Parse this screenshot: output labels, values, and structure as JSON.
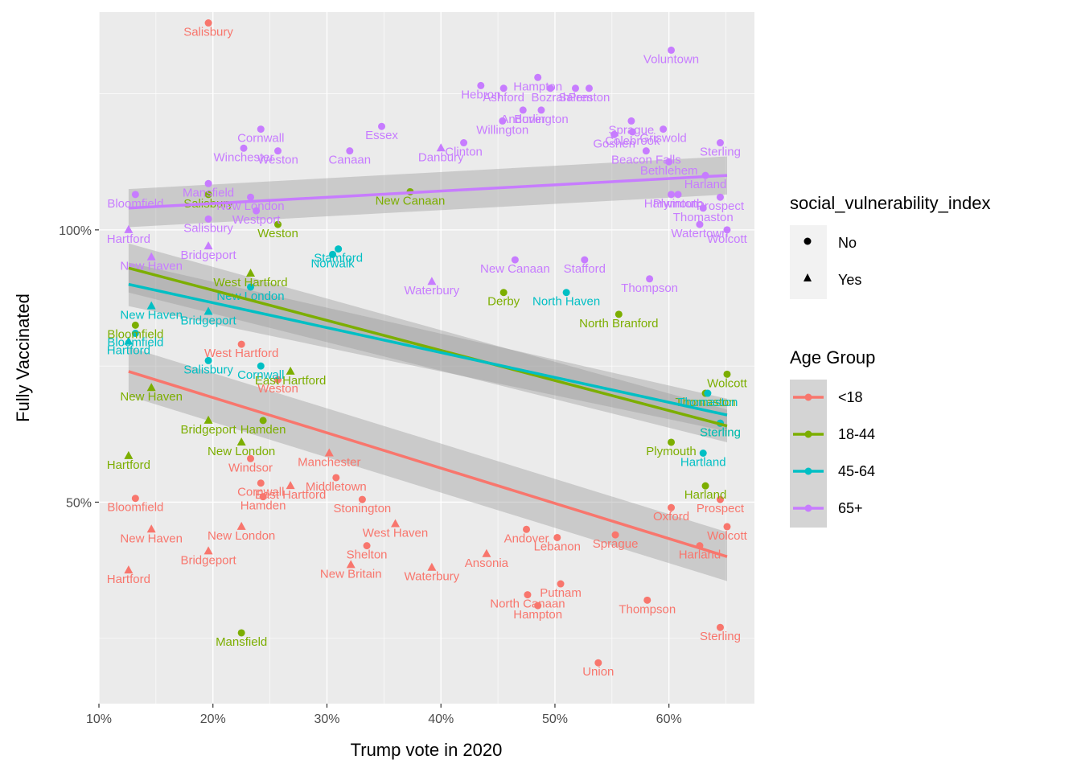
{
  "chart_data": {
    "type": "scatter",
    "title": "",
    "xlabel": "Trump vote in 2020",
    "ylabel": "Fully Vaccinated",
    "xlim": [
      10,
      67.5
    ],
    "ylim": [
      13,
      140
    ],
    "x_ticks": [
      10,
      20,
      30,
      40,
      50,
      60
    ],
    "x_tick_labels": [
      "10%",
      "20%",
      "30%",
      "40%",
      "50%",
      "60%"
    ],
    "y_ticks": [
      50,
      100
    ],
    "y_tick_labels": [
      "50%",
      "100%"
    ],
    "grid": true,
    "legend_position": "right",
    "colors": {
      "<18": "#F8766D",
      "18-44": "#7CAE00",
      "45-64": "#00BFC4",
      "65+": "#C77CFF",
      "panel": "#EBEBEB",
      "grid": "#FFFFFF",
      "ribbon": "#999999"
    },
    "shape_legend": {
      "title": "social_vulnerability_index",
      "items": [
        {
          "label": "No",
          "shape": "circle"
        },
        {
          "label": "Yes",
          "shape": "triangle"
        }
      ]
    },
    "color_legend": {
      "title": "Age Group",
      "items": [
        "<18",
        "18-44",
        "45-64",
        "65+"
      ]
    },
    "trend_lines": [
      {
        "name": "<18",
        "x": [
          12.6,
          65.1
        ],
        "y": [
          74,
          40
        ],
        "se_halfwidth": [
          4.5,
          4.5
        ]
      },
      {
        "name": "18-44",
        "x": [
          12.6,
          65.1
        ],
        "y": [
          93,
          64
        ],
        "se_halfwidth": [
          4.5,
          3
        ]
      },
      {
        "name": "45-64",
        "x": [
          12.6,
          65.1
        ],
        "y": [
          90,
          66
        ],
        "se_halfwidth": [
          4,
          3
        ]
      },
      {
        "name": "65+",
        "x": [
          12.6,
          65.1
        ],
        "y": [
          104,
          110
        ],
        "se_halfwidth": [
          3.5,
          3.5
        ]
      }
    ],
    "series": [
      {
        "name": "<18",
        "points": [
          {
            "label": "Salisbury",
            "x": 19.6,
            "y": 138,
            "shape": "circle"
          },
          {
            "label": "Bloomfield",
            "x": 13.2,
            "y": 50.7,
            "shape": "circle"
          },
          {
            "label": "New Haven",
            "x": 14.6,
            "y": 45,
            "shape": "triangle"
          },
          {
            "label": "Hartford",
            "x": 12.6,
            "y": 37.5,
            "shape": "triangle"
          },
          {
            "label": "Bridgeport",
            "x": 19.6,
            "y": 41,
            "shape": "triangle"
          },
          {
            "label": "New London",
            "x": 22.5,
            "y": 45.5,
            "shape": "triangle"
          },
          {
            "label": "Windsor",
            "x": 23.3,
            "y": 58,
            "shape": "circle"
          },
          {
            "label": "Cornwall",
            "x": 24.2,
            "y": 53.5,
            "shape": "circle"
          },
          {
            "label": "Hamden",
            "x": 24.4,
            "y": 51,
            "shape": "circle"
          },
          {
            "label": "East Hartford",
            "x": 26.8,
            "y": 53,
            "shape": "triangle"
          },
          {
            "label": "West Hartford",
            "x": 22.5,
            "y": 79,
            "shape": "circle"
          },
          {
            "label": "Weston",
            "x": 25.7,
            "y": 72.5,
            "shape": "circle"
          },
          {
            "label": "Manchester",
            "x": 30.2,
            "y": 59,
            "shape": "triangle"
          },
          {
            "label": "Middletown",
            "x": 30.8,
            "y": 54.5,
            "shape": "circle"
          },
          {
            "label": "Stonington",
            "x": 33.1,
            "y": 50.5,
            "shape": "circle"
          },
          {
            "label": "Shelton",
            "x": 33.5,
            "y": 42,
            "shape": "circle"
          },
          {
            "label": "West Haven",
            "x": 36.0,
            "y": 46,
            "shape": "triangle"
          },
          {
            "label": "New Britain",
            "x": 32.1,
            "y": 38.5,
            "shape": "triangle"
          },
          {
            "label": "Waterbury",
            "x": 39.2,
            "y": 38,
            "shape": "triangle"
          },
          {
            "label": "Ansonia",
            "x": 44.0,
            "y": 40.5,
            "shape": "triangle"
          },
          {
            "label": "North Canaan",
            "x": 47.6,
            "y": 33,
            "shape": "circle"
          },
          {
            "label": "Hampton",
            "x": 48.5,
            "y": 31,
            "shape": "circle"
          },
          {
            "label": "Putnam",
            "x": 50.5,
            "y": 35,
            "shape": "circle"
          },
          {
            "label": "Lebanon",
            "x": 50.2,
            "y": 43.5,
            "shape": "circle"
          },
          {
            "label": "Andover",
            "x": 47.5,
            "y": 45,
            "shape": "circle"
          },
          {
            "label": "Sprague",
            "x": 55.3,
            "y": 44,
            "shape": "circle"
          },
          {
            "label": "Thompson",
            "x": 58.1,
            "y": 32,
            "shape": "circle"
          },
          {
            "label": "Sterling",
            "x": 64.5,
            "y": 27,
            "shape": "circle"
          },
          {
            "label": "Union",
            "x": 53.8,
            "y": 20.5,
            "shape": "circle"
          },
          {
            "label": "Wolcott",
            "x": 65.1,
            "y": 45.5,
            "shape": "circle"
          },
          {
            "label": "Prospect",
            "x": 64.5,
            "y": 50.5,
            "shape": "circle"
          },
          {
            "label": "Harland",
            "x": 62.7,
            "y": 42,
            "shape": "circle"
          },
          {
            "label": "Oxford",
            "x": 60.2,
            "y": 49,
            "shape": "circle"
          }
        ]
      },
      {
        "name": "18-44",
        "points": [
          {
            "label": "Salisbury",
            "x": 19.6,
            "y": 106.5,
            "shape": "circle"
          },
          {
            "label": "Mansfield",
            "x": 22.5,
            "y": 26,
            "shape": "circle"
          },
          {
            "label": "Hartford",
            "x": 12.6,
            "y": 58.5,
            "shape": "triangle"
          },
          {
            "label": "New Haven",
            "x": 14.6,
            "y": 71,
            "shape": "triangle"
          },
          {
            "label": "Bloomfield",
            "x": 13.2,
            "y": 82.5,
            "shape": "circle"
          },
          {
            "label": "Bridgeport",
            "x": 19.6,
            "y": 65,
            "shape": "triangle"
          },
          {
            "label": "New London",
            "x": 22.5,
            "y": 61,
            "shape": "triangle"
          },
          {
            "label": "West Hartford",
            "x": 23.3,
            "y": 92,
            "shape": "triangle"
          },
          {
            "label": "Hamden",
            "x": 24.4,
            "y": 65,
            "shape": "circle"
          },
          {
            "label": "East Hartford",
            "x": 26.8,
            "y": 74,
            "shape": "triangle"
          },
          {
            "label": "Weston",
            "x": 25.7,
            "y": 101,
            "shape": "circle"
          },
          {
            "label": "New Canaan",
            "x": 37.3,
            "y": 107,
            "shape": "circle"
          },
          {
            "label": "Derby",
            "x": 45.5,
            "y": 88.5,
            "shape": "circle"
          },
          {
            "label": "North Branford",
            "x": 55.6,
            "y": 84.5,
            "shape": "circle"
          },
          {
            "label": "Plymouth",
            "x": 60.2,
            "y": 61,
            "shape": "circle"
          },
          {
            "label": "Harland",
            "x": 63.2,
            "y": 53,
            "shape": "circle"
          },
          {
            "label": "Thomaston",
            "x": 63.2,
            "y": 70,
            "shape": "circle"
          },
          {
            "label": "Sterling",
            "x": 64.5,
            "y": 64.5,
            "shape": "circle"
          },
          {
            "label": "Wolcott",
            "x": 65.1,
            "y": 73.5,
            "shape": "circle"
          }
        ]
      },
      {
        "name": "45-64",
        "points": [
          {
            "label": "Salisbury",
            "x": 19.6,
            "y": 76,
            "shape": "circle"
          },
          {
            "label": "Bloomfield",
            "x": 13.2,
            "y": 81,
            "shape": "circle"
          },
          {
            "label": "Hartford",
            "x": 12.6,
            "y": 79.5,
            "shape": "triangle"
          },
          {
            "label": "New Haven",
            "x": 14.6,
            "y": 86,
            "shape": "triangle"
          },
          {
            "label": "Bridgeport",
            "x": 19.6,
            "y": 85,
            "shape": "triangle"
          },
          {
            "label": "New London",
            "x": 23.3,
            "y": 89.5,
            "shape": "circle"
          },
          {
            "label": "Cornwall",
            "x": 24.2,
            "y": 75,
            "shape": "circle"
          },
          {
            "label": "Norwalk",
            "x": 30.5,
            "y": 95.5,
            "shape": "circle"
          },
          {
            "label": "Stamford",
            "x": 31.0,
            "y": 96.5,
            "shape": "circle"
          },
          {
            "label": "North Haven",
            "x": 51.0,
            "y": 88.5,
            "shape": "circle"
          },
          {
            "label": "Hartland",
            "x": 63.0,
            "y": 59,
            "shape": "circle"
          },
          {
            "label": "Sterling",
            "x": 64.5,
            "y": 64.5,
            "shape": "circle"
          },
          {
            "label": "Thomaston",
            "x": 63.4,
            "y": 70,
            "shape": "circle"
          }
        ]
      },
      {
        "name": "65+",
        "points": [
          {
            "label": "Voluntown",
            "x": 60.2,
            "y": 133,
            "shape": "circle"
          },
          {
            "label": "Hampton",
            "x": 48.5,
            "y": 128,
            "shape": "circle"
          },
          {
            "label": "Hebron",
            "x": 43.5,
            "y": 126.5,
            "shape": "circle"
          },
          {
            "label": "Ashford",
            "x": 45.5,
            "y": 126,
            "shape": "circle"
          },
          {
            "label": "Salem",
            "x": 51.8,
            "y": 126,
            "shape": "circle"
          },
          {
            "label": "Preston",
            "x": 53.0,
            "y": 126,
            "shape": "circle"
          },
          {
            "label": "Bozrah",
            "x": 49.6,
            "y": 126,
            "shape": "circle"
          },
          {
            "label": "Andover",
            "x": 47.2,
            "y": 122,
            "shape": "circle"
          },
          {
            "label": "Willington",
            "x": 45.4,
            "y": 120,
            "shape": "circle"
          },
          {
            "label": "Burlington",
            "x": 48.8,
            "y": 122,
            "shape": "circle"
          },
          {
            "label": "Sprague",
            "x": 56.7,
            "y": 120,
            "shape": "circle"
          },
          {
            "label": "Goshen",
            "x": 55.2,
            "y": 117.5,
            "shape": "circle"
          },
          {
            "label": "Colebrook",
            "x": 56.8,
            "y": 118,
            "shape": "circle"
          },
          {
            "label": "Griswold",
            "x": 59.5,
            "y": 118.5,
            "shape": "circle"
          },
          {
            "label": "Sterling",
            "x": 64.5,
            "y": 116,
            "shape": "circle"
          },
          {
            "label": "Beacon Falls",
            "x": 58.0,
            "y": 114.5,
            "shape": "circle"
          },
          {
            "label": "Bethlehem",
            "x": 60.0,
            "y": 112.5,
            "shape": "circle"
          },
          {
            "label": "Harland",
            "x": 63.2,
            "y": 110,
            "shape": "circle"
          },
          {
            "label": "Harwinton",
            "x": 60.2,
            "y": 106.5,
            "shape": "circle"
          },
          {
            "label": "Plymouth",
            "x": 60.8,
            "y": 106.5,
            "shape": "circle"
          },
          {
            "label": "Prospect",
            "x": 64.5,
            "y": 106,
            "shape": "circle"
          },
          {
            "label": "Thomaston",
            "x": 63.0,
            "y": 104,
            "shape": "circle"
          },
          {
            "label": "Watertown",
            "x": 62.7,
            "y": 101,
            "shape": "circle"
          },
          {
            "label": "Wolcott",
            "x": 65.1,
            "y": 100,
            "shape": "circle"
          },
          {
            "label": "Thompson",
            "x": 58.3,
            "y": 91,
            "shape": "circle"
          },
          {
            "label": "Stafford",
            "x": 52.6,
            "y": 94.5,
            "shape": "circle"
          },
          {
            "label": "New Canaan",
            "x": 46.5,
            "y": 94.5,
            "shape": "circle"
          },
          {
            "label": "Essex",
            "x": 34.8,
            "y": 119,
            "shape": "circle"
          },
          {
            "label": "Cornwall",
            "x": 24.2,
            "y": 118.5,
            "shape": "circle"
          },
          {
            "label": "Winchester",
            "x": 22.7,
            "y": 115,
            "shape": "circle"
          },
          {
            "label": "Weston",
            "x": 25.7,
            "y": 114.5,
            "shape": "circle"
          },
          {
            "label": "Canaan",
            "x": 32.0,
            "y": 114.5,
            "shape": "circle"
          },
          {
            "label": "Mansfield",
            "x": 19.6,
            "y": 108.5,
            "shape": "circle"
          },
          {
            "label": "Bloomfield",
            "x": 13.2,
            "y": 106.5,
            "shape": "circle"
          },
          {
            "label": "New London",
            "x": 23.3,
            "y": 106,
            "shape": "circle"
          },
          {
            "label": "Westport",
            "x": 23.8,
            "y": 103.5,
            "shape": "circle"
          },
          {
            "label": "Salisbury",
            "x": 19.6,
            "y": 102,
            "shape": "circle"
          },
          {
            "label": "Hartford",
            "x": 12.6,
            "y": 100,
            "shape": "triangle"
          },
          {
            "label": "Bridgeport",
            "x": 19.6,
            "y": 97,
            "shape": "triangle"
          },
          {
            "label": "New Haven",
            "x": 14.6,
            "y": 95,
            "shape": "triangle"
          },
          {
            "label": "Waterbury",
            "x": 39.2,
            "y": 90.5,
            "shape": "triangle"
          },
          {
            "label": "Danbury",
            "x": 40.0,
            "y": 115,
            "shape": "triangle"
          },
          {
            "label": "Clinton",
            "x": 42.0,
            "y": 116,
            "shape": "circle"
          }
        ]
      }
    ]
  }
}
